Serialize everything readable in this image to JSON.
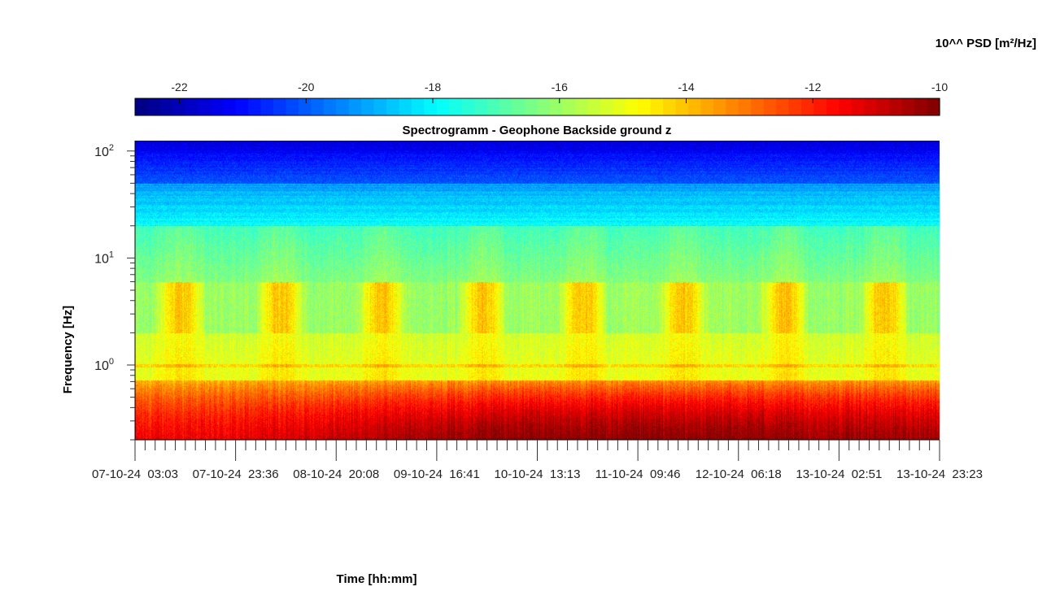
{
  "chart_data": {
    "type": "heatmap",
    "title": "Spectrogramm - Geophone Backside ground z",
    "xlabel": "Time [hh:mm]",
    "ylabel": "Frequency [Hz]",
    "colorbar": {
      "label": "10^^ PSD [m²/Hz]",
      "range": [
        -22.7,
        -10
      ],
      "ticks": [
        -22,
        -20,
        -18,
        -16,
        -14,
        -12,
        -10
      ],
      "tick_labels": [
        "-22",
        "-20",
        "-18",
        "-16",
        "-14",
        "-12",
        "-10"
      ],
      "colormap": "jet",
      "location": "top"
    },
    "x_tick_labels": [
      "07-10-24  03:03",
      "07-10-24  23:36",
      "08-10-24  20:08",
      "09-10-24  16:41",
      "10-10-24  13:13",
      "11-10-24  09:46",
      "12-10-24  06:18",
      "13-10-24  02:51",
      "13-10-24  23:23"
    ],
    "xlim": [
      "07-10-24 03:03",
      "13-10-24 23:23"
    ],
    "yscale": "log",
    "ylim": [
      0.2,
      125
    ],
    "y_ticks": [
      {
        "base": "10",
        "exp": "0",
        "value": 1
      },
      {
        "base": "10",
        "exp": "1",
        "value": 10
      },
      {
        "base": "10",
        "exp": "2",
        "value": 100
      }
    ],
    "grid": false,
    "description_bands": [
      {
        "freq_range": [
          0.2,
          0.7
        ],
        "level": -11.5
      },
      {
        "freq_range": [
          0.7,
          2.0
        ],
        "level": -15.0
      },
      {
        "freq_range": [
          2.0,
          5.0
        ],
        "level": -14.5
      },
      {
        "freq_range": [
          5.0,
          20.0
        ],
        "level": -16.5
      },
      {
        "freq_range": [
          20.0,
          50.0
        ],
        "level": -18.5
      },
      {
        "freq_range": [
          50.0,
          125.0
        ],
        "level": -21.0
      }
    ]
  }
}
